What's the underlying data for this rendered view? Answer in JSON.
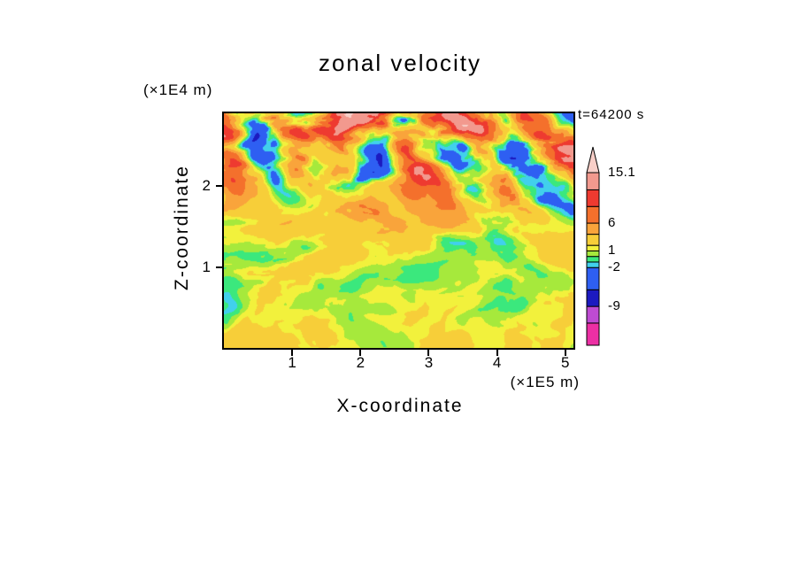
{
  "chart_data": {
    "type": "contour",
    "title": "zonal velocity",
    "time_label": "t=64200 s",
    "x_axis": {
      "label": "X-coordinate",
      "units": "(×1E5 m)",
      "ticks": [
        "1",
        "2",
        "3",
        "4",
        "5"
      ],
      "tick_values": [
        1,
        2,
        3,
        4,
        5
      ],
      "range": [
        0,
        5.12
      ]
    },
    "z_axis": {
      "label": "Z-coordinate",
      "units": "(×1E4 m)",
      "ticks": [
        "1",
        "2"
      ],
      "tick_values": [
        1,
        2
      ],
      "range": [
        0,
        2.9
      ]
    },
    "colorbar": {
      "labels": [
        {
          "text": "15.1",
          "value": 15.1
        },
        {
          "text": "6",
          "value": 6
        },
        {
          "text": "1",
          "value": 1
        },
        {
          "text": "-2",
          "value": -2
        },
        {
          "text": "-9",
          "value": -9
        }
      ],
      "levels": [
        -16,
        -12,
        -9,
        -6,
        -2,
        -1,
        0,
        1,
        2,
        4,
        6,
        9,
        12,
        15.1
      ],
      "colors": [
        "#EC2FA4",
        "#BE4BD2",
        "#1C1AC0",
        "#2E5FF2",
        "#41D0EC",
        "#3BE87D",
        "#A6E93C",
        "#F2F13C",
        "#F7CE39",
        "#F9A43B",
        "#F4702C",
        "#EE3A30",
        "#F2998E"
      ],
      "over_color": "#F8CFC8"
    },
    "field": {
      "generator": "fbm-procedural-approximation",
      "seed": 11,
      "base": [
        0.85,
        2.2
      ],
      "amplitude": [
        3.2,
        10.5
      ],
      "amplitude_onset": [
        0.45,
        0.95
      ],
      "frequency": [
        6.5,
        7.5
      ],
      "octaves": 4,
      "band": {
        "strength": 7.5,
        "x_cycles": 4.2,
        "z_cycles": 2.5,
        "phase_warp": 4.5,
        "onset": [
          0.5,
          0.78
        ]
      }
    }
  }
}
